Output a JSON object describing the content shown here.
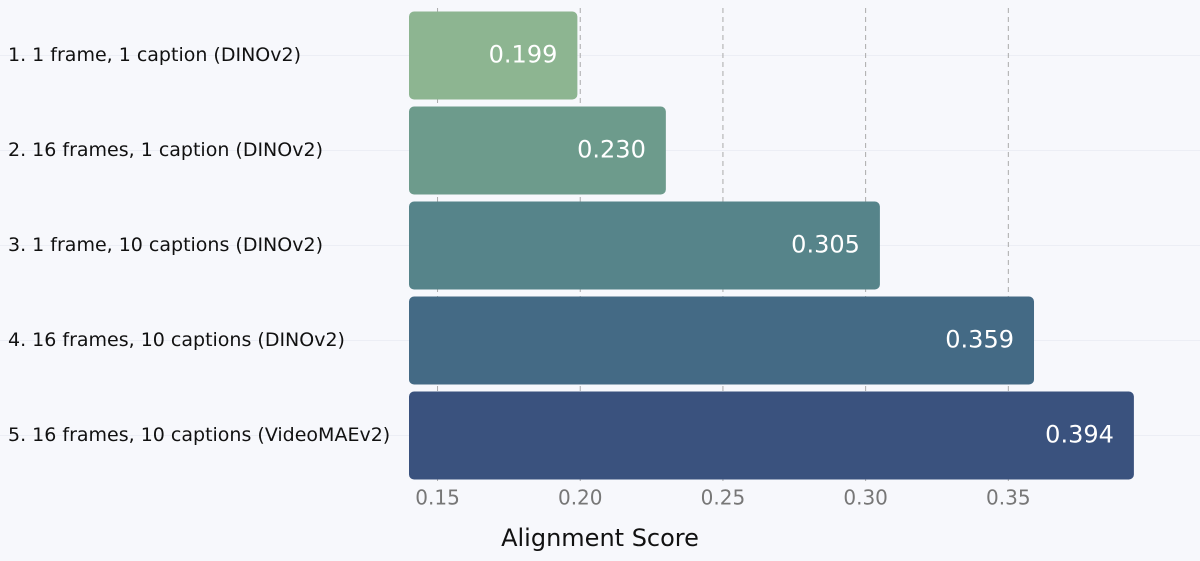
{
  "chart_data": {
    "type": "barh",
    "categories": [
      "1. 1 frame, 1 caption (DINOv2)",
      "2. 16 frames, 1 caption (DINOv2)",
      "3. 1 frame, 10 captions (DINOv2)",
      "4. 16 frames, 10 captions (DINOv2)",
      "5. 16 frames, 10 captions (VideoMAEv2)"
    ],
    "values": [
      0.199,
      0.23,
      0.305,
      0.359,
      0.394
    ],
    "value_labels": [
      "0.199",
      "0.230",
      "0.305",
      "0.359",
      "0.394"
    ],
    "colors": [
      "#8db591",
      "#6d9b8c",
      "#56848a",
      "#446a85",
      "#3a527e"
    ],
    "x_label": "Alignment Score",
    "xlim": [
      0.14,
      0.407
    ],
    "xticks": [
      0.15,
      {
        "value": 0.2,
        "label": "0.20"
      },
      0.25,
      {
        "value": 0.3,
        "label": "0.30"
      },
      0.35
    ],
    "grid": true
  }
}
